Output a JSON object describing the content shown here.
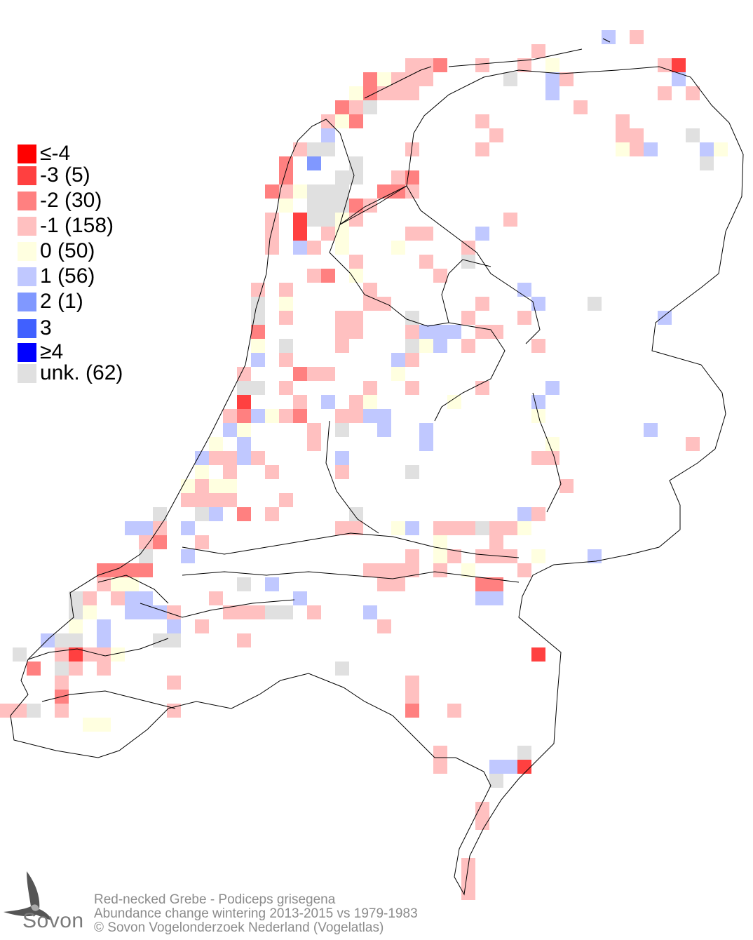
{
  "map": {
    "region": "Netherlands",
    "grid": "atlas squares",
    "colors": {
      "-4": "#ff0000",
      "-3": "#ff4040",
      "-2": "#ff8080",
      "-1": "#ffc0c0",
      "0": "#ffffe0",
      "1": "#c0c8ff",
      "2": "#8098ff",
      "3": "#4060ff",
      "4": "#0000ff",
      "unk": "#e0e0e0"
    },
    "outline_color": "#000000"
  },
  "legend": {
    "items": [
      {
        "key": "-4",
        "label": "≤-4",
        "color": "#ff0000"
      },
      {
        "key": "-3",
        "label": "-3 (5)",
        "color": "#ff4040"
      },
      {
        "key": "-2",
        "label": "-2 (30)",
        "color": "#ff8080"
      },
      {
        "key": "-1",
        "label": "-1 (158)",
        "color": "#ffc0c0"
      },
      {
        "key": "0",
        "label": " 0 (50)",
        "color": "#ffffe0"
      },
      {
        "key": "1",
        "label": " 1 (56)",
        "color": "#c0c8ff"
      },
      {
        "key": "2",
        "label": " 2 (1)",
        "color": "#8098ff"
      },
      {
        "key": "3",
        "label": " 3",
        "color": "#4060ff"
      },
      {
        "key": "4",
        "label": "≥4",
        "color": "#0000ff"
      },
      {
        "key": "unk",
        "label": "unk. (62)",
        "color": "#e0e0e0"
      }
    ]
  },
  "caption": {
    "species": "Red-necked Grebe - Podiceps grisegena",
    "subtitle": "Abundance change wintering  2013-2015 vs 1979-1983",
    "copyright": "© Sovon Vogelonderzoek Nederland (Vogelatlas)"
  },
  "logo": {
    "text": "Sovon"
  }
}
